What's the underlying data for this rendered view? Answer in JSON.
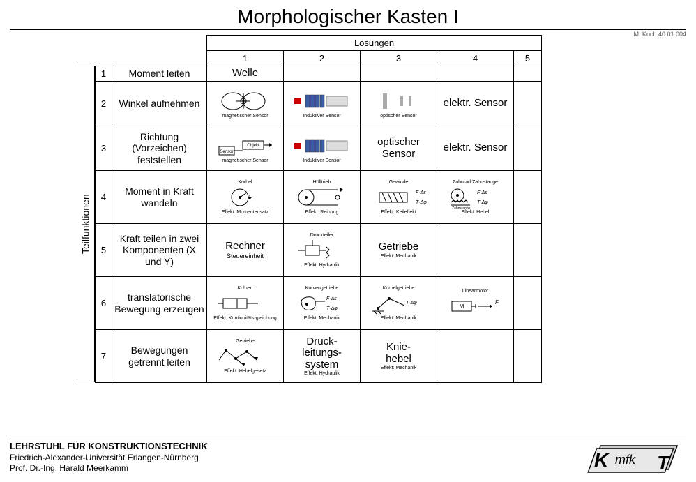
{
  "title": "Morphologischer Kasten I",
  "reference": "M. Koch 40.01.004",
  "header": {
    "solutions_label": "Lösungen",
    "cols": [
      "1",
      "2",
      "3",
      "4",
      "5"
    ]
  },
  "side_label": "Teilfunktionen",
  "rows": [
    {
      "num": "1",
      "func": "Moment leiten",
      "cells": [
        {
          "text": "Welle"
        },
        {},
        {},
        {},
        {}
      ]
    },
    {
      "num": "2",
      "func": "Winkel aufnehmen",
      "cells": [
        {
          "icon": "coil-sensor",
          "caption": "magnetischer Sensor"
        },
        {
          "icon": "inductive",
          "caption": "Induktiver Sensor"
        },
        {
          "icon": "optical-bars",
          "caption": "optischer Sensor"
        },
        {
          "text": "elektr. Sensor"
        },
        {}
      ]
    },
    {
      "num": "3",
      "func": "Richtung (Vorzeichen) feststellen",
      "cells": [
        {
          "icon": "sensor-object",
          "caption": "magnetischer Sensor"
        },
        {
          "icon": "inductive",
          "caption": "Induktiver Sensor"
        },
        {
          "text": "optischer Sensor"
        },
        {
          "text": "elektr. Sensor"
        },
        {}
      ]
    },
    {
      "num": "4",
      "func": "Moment in Kraft wandeln",
      "cells": [
        {
          "icon": "crank",
          "cap_top": "Kurbel",
          "caption": "Effekt: Momentensatz"
        },
        {
          "icon": "belt",
          "cap_top": "Hülltrieb",
          "caption": "Effekt: Reibung"
        },
        {
          "icon": "thread",
          "cap_top": "Gewinde",
          "caption": "Effekt: Keileffekt",
          "formula": "F·Δs / T·Δφ"
        },
        {
          "icon": "rack",
          "cap_top": "Zahnrad Zahnstange",
          "caption": "Effekt: Hebel",
          "formula": "F·Δs / T·Δφ"
        },
        {}
      ]
    },
    {
      "num": "5",
      "func": "Kraft teilen in zwei Komponenten (X und Y)",
      "cells": [
        {
          "text": "Rechner",
          "subtext": "Steuereinheit"
        },
        {
          "icon": "hydraulic",
          "cap_top": "Druckteiler",
          "caption": "Effekt: Hydraulik"
        },
        {
          "text": "Getriebe",
          "caption": "Effekt: Mechanik"
        },
        {},
        {}
      ]
    },
    {
      "num": "6",
      "func": "translatorische Bewegung erzeugen",
      "cells": [
        {
          "icon": "piston",
          "cap_top": "Kolben",
          "caption": "Effekt: Kontinuitäts-gleichung"
        },
        {
          "icon": "cam",
          "cap_top": "Kurvengetriebe",
          "caption": "Effekt: Mechanik",
          "formula": "F·Δs / T·Δφ"
        },
        {
          "icon": "crank-mech",
          "cap_top": "Kurbelgetriebe",
          "caption": "Effekt: Mechanik",
          "formula": "T·Δφ"
        },
        {
          "icon": "linear-motor",
          "cap_top": "Linearmotor",
          "formula": "F"
        },
        {}
      ]
    },
    {
      "num": "7",
      "func": "Bewegungen getrennt leiten",
      "cells": [
        {
          "icon": "linkage",
          "cap_top": "Getriebe",
          "caption": "Effekt: Hebelgesetz"
        },
        {
          "text": "Druck-leitungs-system",
          "caption": "Effekt: Hydraulik"
        },
        {
          "text": "Knie-hebel",
          "caption": "Effekt: Mechanik"
        },
        {},
        {}
      ]
    }
  ],
  "footer": {
    "line1": "LEHRSTUHL FÜR KONSTRUKTIONSTECHNIK",
    "line2": "Friedrich-Alexander-Universität Erlangen-Nürnberg",
    "line3": "Prof. Dr.-Ing. Harald Meerkamm"
  },
  "colors": {
    "border": "#000000",
    "bg": "#ffffff",
    "accent_red": "#cc0000",
    "accent_blue": "#3b5ba5",
    "logo_gray": "#cccccc",
    "logo_shadow": "#888888"
  }
}
